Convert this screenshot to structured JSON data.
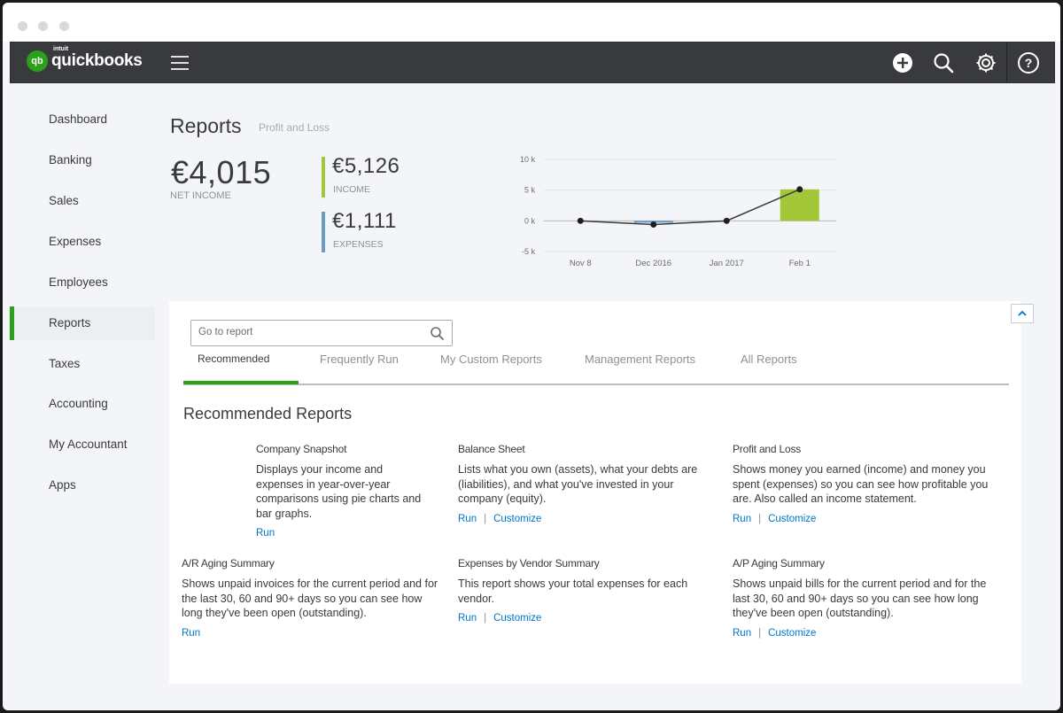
{
  "app": {
    "logo_badge": "qb",
    "logo_company": "intuit",
    "logo_name": "quickbooks"
  },
  "sidebar": {
    "items": [
      {
        "label": "Dashboard"
      },
      {
        "label": "Banking"
      },
      {
        "label": "Sales"
      },
      {
        "label": "Expenses"
      },
      {
        "label": "Employees"
      },
      {
        "label": "Reports",
        "active": true
      },
      {
        "label": "Taxes"
      },
      {
        "label": "Accounting"
      },
      {
        "label": "My Accountant"
      },
      {
        "label": "Apps"
      }
    ]
  },
  "header": {
    "title": "Reports",
    "subtitle": "Profit and Loss"
  },
  "kpis": {
    "net_income_value": "€4,015",
    "net_income_label": "NET INCOME",
    "income_value": "€5,126",
    "income_label": "INCOME",
    "expenses_value": "€1,111",
    "expenses_label": "EXPENSES"
  },
  "colors": {
    "brand_green": "#2ca01c",
    "income_bar": "#a4c639",
    "expenses_bar": "#6a9bc3",
    "link_blue": "#0077c5",
    "topbar": "#393a3d"
  },
  "chart_data": {
    "type": "bar",
    "categories": [
      "Nov 8",
      "Dec 2016",
      "Jan 2017",
      "Feb 1"
    ],
    "series": [
      {
        "values": [
          0,
          -300,
          0,
          5126
        ],
        "render": "bar",
        "color": "#a4c639"
      },
      {
        "values": [
          0,
          -600,
          0,
          5126
        ],
        "render": "line",
        "color": "#393a3d"
      }
    ],
    "yticks": [
      "10 k",
      "5 k",
      "0 k",
      "-5 k"
    ],
    "ylim": [
      -5000,
      10000
    ],
    "grid": true
  },
  "search": {
    "placeholder": "Go to report"
  },
  "tabs": [
    {
      "label": "Recommended",
      "active": true
    },
    {
      "label": "Frequently Run"
    },
    {
      "label": "My Custom Reports"
    },
    {
      "label": "Management Reports"
    },
    {
      "label": "All Reports"
    }
  ],
  "recommended": {
    "title": "Recommended Reports",
    "run_label": "Run",
    "customize_label": "Customize",
    "reports": [
      {
        "title": "Company Snapshot",
        "desc": "Displays your income and expenses in year-over-year comparisons using pie charts and bar graphs."
      },
      {
        "title": "Balance Sheet",
        "desc": "Lists what you own (assets), what your debts are (liabilities), and what you've invested in your company (equity)."
      },
      {
        "title": "Profit and Loss",
        "desc": "Shows money you earned (income) and money you spent (expenses) so you can see how profitable you are. Also called an income statement."
      },
      {
        "title": "A/R Aging Summary",
        "desc": "Shows unpaid invoices for the current period and for the last 30, 60 and 90+ days so you can see how long they've been open (outstanding)."
      },
      {
        "title": "Expenses by Vendor Summary",
        "desc": "This report shows your total expenses for each vendor."
      },
      {
        "title": "A/P Aging Summary",
        "desc": "Shows unpaid bills for the current period and for the last 30, 60 and 90+ days so you can see how long they've been open (outstanding)."
      }
    ]
  }
}
